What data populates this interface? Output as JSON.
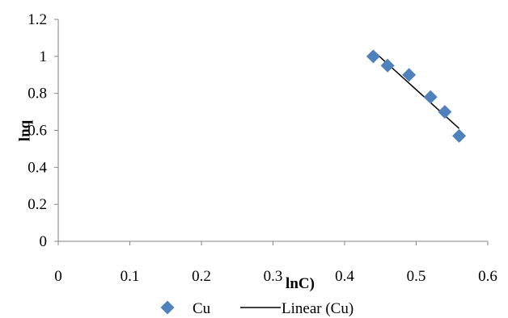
{
  "chart_data": {
    "type": "scatter",
    "title": "",
    "xlabel": "lnC)",
    "ylabel": "lnq",
    "xlim": [
      0,
      0.6
    ],
    "ylim": [
      0,
      1.2
    ],
    "x_ticks": [
      "0",
      "0.1",
      "0.2",
      "0.3",
      "0.4",
      "0.5",
      "0.6"
    ],
    "y_ticks": [
      "0",
      "0.2",
      "0.4",
      "0.6",
      "0.8",
      "1",
      "1.2"
    ],
    "grid": false,
    "legend_position": "bottom",
    "series": [
      {
        "name": "Cu",
        "marker": "diamond",
        "color": "#4F81BD",
        "points": [
          {
            "x": 0.44,
            "y": 1.0
          },
          {
            "x": 0.46,
            "y": 0.95
          },
          {
            "x": 0.49,
            "y": 0.9
          },
          {
            "x": 0.52,
            "y": 0.78
          },
          {
            "x": 0.54,
            "y": 0.7
          },
          {
            "x": 0.56,
            "y": 0.57
          }
        ]
      }
    ],
    "trendline": {
      "name": "Linear (Cu)",
      "type": "linear",
      "color": "#000000",
      "x_range": [
        0.44,
        0.56
      ],
      "y_range": [
        1.03,
        0.61
      ]
    }
  }
}
